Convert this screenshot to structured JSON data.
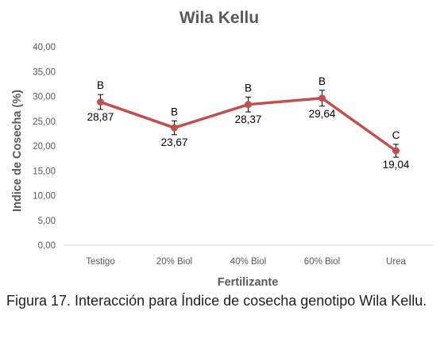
{
  "chart_data": {
    "type": "line",
    "title": "Wila Kellu",
    "xlabel": "Fertilizante",
    "ylabel": "Indice de Cosecha (%)",
    "categories": [
      "Testigo",
      "20% Biol",
      "40% Biol",
      "60% Biol",
      "Urea"
    ],
    "values": [
      28.87,
      23.67,
      28.37,
      29.64,
      19.04
    ],
    "value_labels": [
      "28,87",
      "23,67",
      "28,37",
      "29,64",
      "19,04"
    ],
    "error_bars": [
      1.5,
      1.4,
      1.5,
      1.6,
      1.3
    ],
    "significance_letters": [
      "B",
      "B",
      "B",
      "B",
      "C"
    ],
    "ylim": [
      0,
      40
    ],
    "yticks": [
      "0,00",
      "5,00",
      "10,00",
      "15,00",
      "20,00",
      "25,00",
      "30,00",
      "35,00",
      "40,00"
    ],
    "grid": false,
    "series_color": "#c0504d"
  },
  "caption": "Figura 17. Interacción para Índice de cosecha genotipo Wila Kellu."
}
